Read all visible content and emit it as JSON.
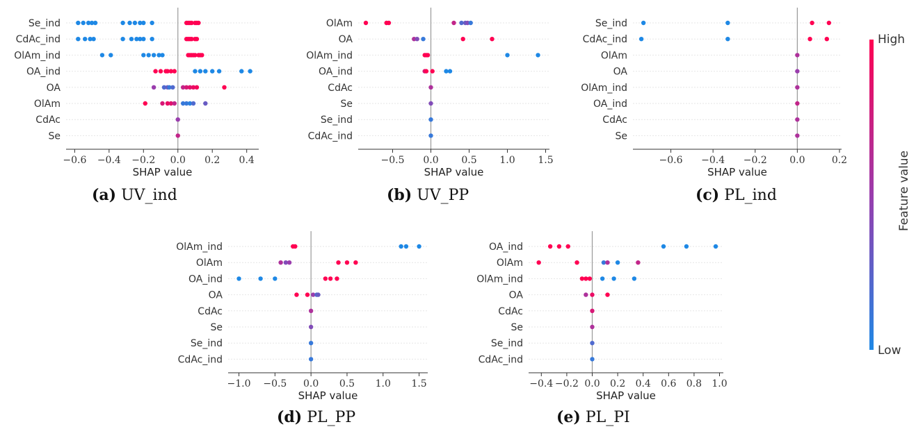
{
  "colors": {
    "high": "#ff0052",
    "low": "#1e88e5",
    "axis": "#333333",
    "zero_line": "#999999",
    "row_line": "#e6e6e6",
    "tick_text": "#333333"
  },
  "colorbar": {
    "high_label": "High",
    "low_label": "Low",
    "title": "Feature value"
  },
  "chart_data": [
    {
      "type": "scatter",
      "subtype": "shap-beeswarm",
      "caption_letter": "(a)",
      "caption_name": "UV_ind",
      "xlabel": "SHAP value",
      "xlim": [
        -0.65,
        0.47
      ],
      "xticks": [
        -0.6,
        -0.4,
        -0.2,
        0.0,
        0.2,
        0.4
      ],
      "xtick_labels": [
        "−0.6",
        "−0.4",
        "−0.2",
        "0.0",
        "0.2",
        "0.4"
      ],
      "features": [
        "Se_ind",
        "CdAc_ind",
        "OlAm_ind",
        "OA_ind",
        "OA",
        "OlAm",
        "CdAc",
        "Se"
      ],
      "points": [
        [
          [
            -0.58,
            0
          ],
          [
            -0.55,
            0
          ],
          [
            -0.52,
            0
          ],
          [
            -0.5,
            0
          ],
          [
            -0.48,
            0
          ],
          [
            -0.32,
            0
          ],
          [
            -0.28,
            0
          ],
          [
            -0.25,
            0
          ],
          [
            -0.22,
            0
          ],
          [
            -0.2,
            0
          ],
          [
            -0.15,
            0
          ],
          [
            0.05,
            1
          ],
          [
            0.06,
            1
          ],
          [
            0.07,
            1
          ],
          [
            0.08,
            1
          ],
          [
            0.1,
            1
          ],
          [
            0.11,
            1
          ],
          [
            0.12,
            1
          ]
        ],
        [
          [
            -0.58,
            0
          ],
          [
            -0.54,
            0
          ],
          [
            -0.51,
            0
          ],
          [
            -0.49,
            0
          ],
          [
            -0.32,
            0
          ],
          [
            -0.27,
            0
          ],
          [
            -0.24,
            0
          ],
          [
            -0.22,
            0
          ],
          [
            -0.2,
            0
          ],
          [
            -0.15,
            0
          ],
          [
            0.05,
            1
          ],
          [
            0.06,
            1
          ],
          [
            0.07,
            1
          ],
          [
            0.08,
            1
          ],
          [
            0.1,
            1
          ],
          [
            0.11,
            1
          ]
        ],
        [
          [
            -0.44,
            0
          ],
          [
            -0.39,
            0
          ],
          [
            -0.2,
            0
          ],
          [
            -0.17,
            0
          ],
          [
            -0.14,
            0
          ],
          [
            -0.11,
            0
          ],
          [
            -0.09,
            0
          ],
          [
            0.06,
            1
          ],
          [
            0.07,
            1
          ],
          [
            0.08,
            1
          ],
          [
            0.09,
            1
          ],
          [
            0.1,
            1
          ],
          [
            0.12,
            1
          ],
          [
            0.13,
            1
          ],
          [
            0.14,
            1
          ]
        ],
        [
          [
            -0.13,
            1
          ],
          [
            -0.1,
            1
          ],
          [
            -0.07,
            1
          ],
          [
            -0.06,
            1
          ],
          [
            -0.04,
            1
          ],
          [
            -0.02,
            1
          ],
          [
            0.1,
            0
          ],
          [
            0.13,
            0
          ],
          [
            0.16,
            0
          ],
          [
            0.2,
            0
          ],
          [
            0.24,
            0
          ],
          [
            0.37,
            0
          ],
          [
            0.42,
            0
          ]
        ],
        [
          [
            -0.14,
            0.5
          ],
          [
            -0.08,
            0.2
          ],
          [
            -0.06,
            0.3
          ],
          [
            -0.05,
            0.1
          ],
          [
            -0.03,
            0.2
          ],
          [
            0.03,
            0.7
          ],
          [
            0.05,
            0.8
          ],
          [
            0.07,
            0.85
          ],
          [
            0.09,
            0.9
          ],
          [
            0.11,
            0.95
          ],
          [
            0.27,
            1
          ]
        ],
        [
          [
            -0.19,
            1
          ],
          [
            -0.09,
            0.8
          ],
          [
            -0.06,
            0.9
          ],
          [
            -0.04,
            0.85
          ],
          [
            -0.02,
            0.7
          ],
          [
            0.03,
            0.1
          ],
          [
            0.05,
            0.1
          ],
          [
            0.07,
            0.05
          ],
          [
            0.09,
            0.2
          ],
          [
            0.16,
            0.3
          ]
        ],
        [
          [
            0.0,
            0.5
          ]
        ],
        [
          [
            0.0,
            0.7
          ]
        ]
      ]
    },
    {
      "type": "scatter",
      "subtype": "shap-beeswarm",
      "caption_letter": "(b)",
      "caption_name": "UV_PP",
      "xlabel": "SHAP value",
      "xlim": [
        -0.95,
        1.55
      ],
      "xticks": [
        -0.5,
        0.0,
        0.5,
        1.0,
        1.5
      ],
      "xtick_labels": [
        "−0.5",
        "0.0",
        "0.5",
        "1.0",
        "1.5"
      ],
      "features": [
        "OlAm",
        "OA",
        "OlAm_ind",
        "OA_ind",
        "CdAc",
        "Se",
        "Se_ind",
        "CdAc_ind"
      ],
      "points": [
        [
          [
            -0.85,
            1
          ],
          [
            -0.58,
            1
          ],
          [
            -0.55,
            1
          ],
          [
            0.3,
            0.7
          ],
          [
            0.4,
            0.2
          ],
          [
            0.45,
            0.3
          ],
          [
            0.48,
            0.4
          ],
          [
            0.52,
            0.1
          ]
        ],
        [
          [
            -0.22,
            0.6
          ],
          [
            -0.18,
            0.4
          ],
          [
            -0.1,
            0.1
          ],
          [
            0.42,
            1
          ],
          [
            0.8,
            1
          ]
        ],
        [
          [
            -0.08,
            1
          ],
          [
            -0.06,
            1
          ],
          [
            -0.04,
            1
          ],
          [
            1.0,
            0
          ],
          [
            1.4,
            0
          ]
        ],
        [
          [
            -0.08,
            0.8
          ],
          [
            -0.06,
            1
          ],
          [
            0.02,
            1
          ],
          [
            0.2,
            0
          ],
          [
            0.25,
            0
          ]
        ],
        [
          [
            0.0,
            0.6
          ]
        ],
        [
          [
            0.0,
            0.4
          ]
        ],
        [
          [
            0.0,
            0.1
          ]
        ],
        [
          [
            0.0,
            0.1
          ]
        ]
      ]
    },
    {
      "type": "scatter",
      "subtype": "shap-beeswarm",
      "caption_letter": "(c)",
      "caption_name": "PL_ind",
      "xlabel": "SHAP value",
      "xlim": [
        -0.78,
        0.21
      ],
      "xticks": [
        -0.6,
        -0.4,
        -0.2,
        0.0,
        0.2
      ],
      "xtick_labels": [
        "−0.6",
        "−0.4",
        "−0.2",
        "0.0",
        "0.2"
      ],
      "features": [
        "Se_ind",
        "CdAc_ind",
        "OlAm",
        "OA",
        "OlAm_ind",
        "OA_ind",
        "CdAc",
        "Se"
      ],
      "points": [
        [
          [
            -0.73,
            0
          ],
          [
            -0.33,
            0
          ],
          [
            0.07,
            1
          ],
          [
            0.15,
            1
          ]
        ],
        [
          [
            -0.74,
            0
          ],
          [
            -0.33,
            0
          ],
          [
            0.06,
            1
          ],
          [
            0.14,
            1
          ]
        ],
        [
          [
            0.0,
            0.6
          ]
        ],
        [
          [
            0.0,
            0.5
          ]
        ],
        [
          [
            0.0,
            0.6
          ]
        ],
        [
          [
            0.0,
            0.7
          ]
        ],
        [
          [
            0.0,
            0.6
          ]
        ],
        [
          [
            0.0,
            0.6
          ]
        ]
      ]
    },
    {
      "type": "scatter",
      "subtype": "shap-beeswarm",
      "caption_letter": "(d)",
      "caption_name": "PL_PP",
      "xlabel": "SHAP value",
      "xlim": [
        -1.15,
        1.62
      ],
      "xticks": [
        -1.0,
        -0.5,
        0.0,
        0.5,
        1.0,
        1.5
      ],
      "xtick_labels": [
        "−1.0",
        "−0.5",
        "0.0",
        "0.5",
        "1.0",
        "1.5"
      ],
      "features": [
        "OlAm_ind",
        "OlAm",
        "OA_ind",
        "OA",
        "CdAc",
        "Se",
        "Se_ind",
        "CdAc_ind"
      ],
      "points": [
        [
          [
            -0.25,
            1
          ],
          [
            -0.22,
            1
          ],
          [
            1.25,
            0
          ],
          [
            1.32,
            0
          ],
          [
            1.5,
            0
          ]
        ],
        [
          [
            -0.42,
            0.6
          ],
          [
            -0.35,
            0.4
          ],
          [
            -0.3,
            0.5
          ],
          [
            0.38,
            1
          ],
          [
            0.5,
            1
          ],
          [
            0.62,
            1
          ]
        ],
        [
          [
            -1.0,
            0
          ],
          [
            -0.7,
            0
          ],
          [
            -0.5,
            0
          ],
          [
            0.2,
            1
          ],
          [
            0.27,
            1
          ],
          [
            0.36,
            1
          ]
        ],
        [
          [
            -0.2,
            1
          ],
          [
            -0.05,
            1
          ],
          [
            0.03,
            0.5
          ],
          [
            0.08,
            0.2
          ],
          [
            0.1,
            0.3
          ]
        ],
        [
          [
            0.0,
            0.6
          ]
        ],
        [
          [
            0.0,
            0.4
          ]
        ],
        [
          [
            0.0,
            0.1
          ]
        ],
        [
          [
            0.0,
            0.1
          ]
        ]
      ]
    },
    {
      "type": "scatter",
      "subtype": "shap-beeswarm",
      "caption_letter": "(e)",
      "caption_name": "PL_PI",
      "xlabel": "SHAP value",
      "xlim": [
        -0.5,
        1.03
      ],
      "xticks": [
        -0.4,
        -0.2,
        0.0,
        0.2,
        0.4,
        0.6,
        0.8,
        1.0
      ],
      "xtick_labels": [
        "−0.4",
        "−0.2",
        "0.0",
        "0.2",
        "0.4",
        "0.6",
        "0.8",
        "1.0"
      ],
      "features": [
        "OA_ind",
        "OlAm",
        "OlAm_ind",
        "OA",
        "CdAc",
        "Se",
        "Se_ind",
        "CdAc_ind"
      ],
      "points": [
        [
          [
            -0.33,
            1
          ],
          [
            -0.26,
            1
          ],
          [
            -0.19,
            1
          ],
          [
            0.56,
            0
          ],
          [
            0.74,
            0
          ],
          [
            0.97,
            0
          ]
        ],
        [
          [
            -0.42,
            1
          ],
          [
            -0.12,
            1
          ],
          [
            0.09,
            0.1
          ],
          [
            0.12,
            0.6
          ],
          [
            0.2,
            0
          ],
          [
            0.36,
            0.7
          ]
        ],
        [
          [
            -0.08,
            1
          ],
          [
            -0.05,
            1
          ],
          [
            -0.02,
            1
          ],
          [
            0.08,
            0
          ],
          [
            0.17,
            0
          ],
          [
            0.33,
            0
          ]
        ],
        [
          [
            -0.05,
            0.6
          ],
          [
            0.0,
            0.9
          ],
          [
            0.12,
            1
          ]
        ],
        [
          [
            0.0,
            0.8
          ]
        ],
        [
          [
            0.0,
            0.6
          ]
        ],
        [
          [
            0.0,
            0.2
          ]
        ],
        [
          [
            0.0,
            0.1
          ]
        ]
      ]
    }
  ]
}
